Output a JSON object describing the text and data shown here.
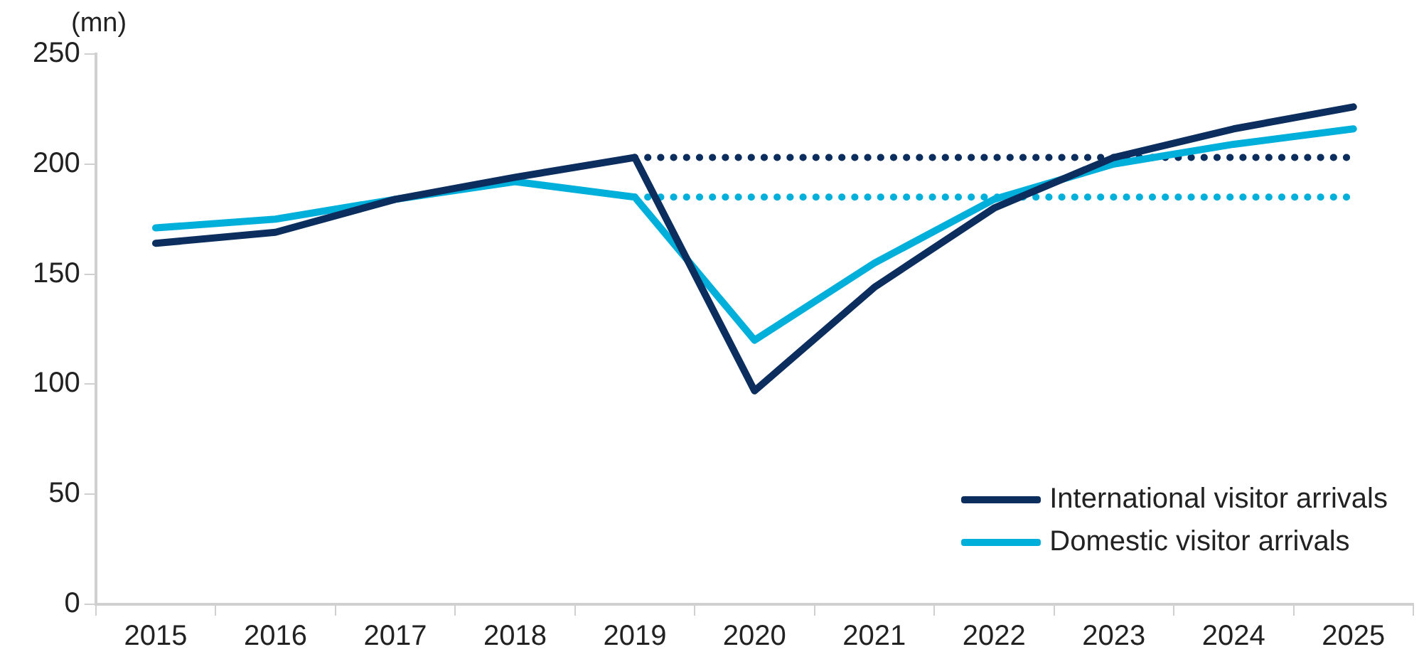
{
  "chart_data": {
    "type": "line",
    "ylabel": "(mn)",
    "categories": [
      "2015",
      "2016",
      "2017",
      "2018",
      "2019",
      "2020",
      "2021",
      "2022",
      "2023",
      "2024",
      "2025"
    ],
    "series": [
      {
        "name": "International visitor arrivals",
        "color": "#0b2e5e",
        "values": [
          164,
          169,
          184,
          194,
          203,
          97,
          144,
          180,
          203,
          216,
          226
        ]
      },
      {
        "name": "Domestic visitor arrivals",
        "color": "#00b0db",
        "values": [
          171,
          175,
          184,
          192,
          185,
          120,
          155,
          184,
          200,
          209,
          216
        ]
      },
      {
        "color": "#0b2e5e",
        "line_style": "dotted",
        "values": [
          null,
          null,
          null,
          null,
          203,
          203,
          203,
          203,
          203,
          203,
          203
        ]
      },
      {
        "color": "#00b0db",
        "line_style": "dotted",
        "values": [
          null,
          null,
          null,
          null,
          185,
          185,
          185,
          185,
          185,
          185,
          185
        ]
      }
    ],
    "ylim": [
      0,
      250
    ],
    "yticks": [
      0,
      50,
      100,
      150,
      200,
      250
    ],
    "grid": false,
    "legend": "bottom right",
    "marker": "none",
    "line_style": "solid"
  }
}
